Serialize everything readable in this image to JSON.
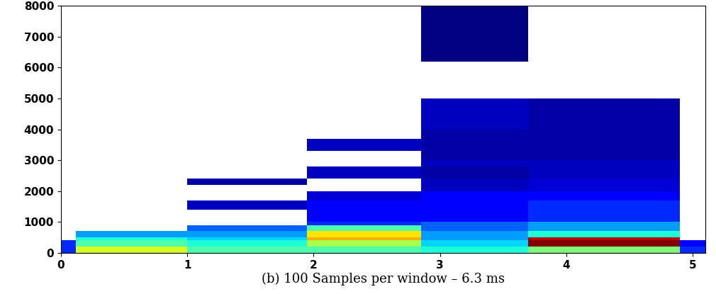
{
  "chart_data": {
    "type": "heatmap",
    "xlabel": "(b) 100 Samples per window – 6.3 ms",
    "x": [
      0,
      0.12,
      1.0,
      1.95,
      2.85,
      3.7,
      4.9,
      5.1
    ],
    "y": [
      0,
      200,
      400,
      500,
      700,
      900,
      1000,
      1400,
      1700,
      2000,
      2200,
      2400,
      2800,
      3000,
      3300,
      3700,
      4000,
      5000,
      6200,
      7500,
      8000
    ],
    "cells": [
      [
        0.2,
        0.6,
        0.45,
        0.45,
        0.4,
        0.5,
        0.2
      ],
      [
        0.2,
        0.45,
        0.4,
        0.55,
        0.35,
        0.95,
        0.15
      ],
      [
        null,
        0.4,
        0.35,
        0.7,
        0.3,
        0.9,
        null
      ],
      [
        null,
        0.3,
        0.3,
        0.65,
        0.3,
        0.4,
        null
      ],
      [
        null,
        null,
        0.25,
        0.45,
        0.25,
        0.3,
        null
      ],
      [
        null,
        null,
        null,
        0.2,
        0.25,
        0.3,
        null
      ],
      [
        null,
        null,
        null,
        0.15,
        0.15,
        0.2,
        null
      ],
      [
        null,
        null,
        0.1,
        0.15,
        0.15,
        0.2,
        null
      ],
      [
        null,
        null,
        null,
        0.12,
        0.15,
        0.15,
        null
      ],
      [
        null,
        null,
        null,
        null,
        0.1,
        0.12,
        null
      ],
      [
        null,
        null,
        0.08,
        null,
        0.1,
        0.12,
        null
      ],
      [
        null,
        null,
        null,
        0.1,
        0.08,
        0.1,
        null
      ],
      [
        null,
        null,
        null,
        null,
        0.1,
        0.1,
        null
      ],
      [
        null,
        null,
        null,
        null,
        0.08,
        0.08,
        null
      ],
      [
        null,
        null,
        null,
        0.1,
        0.08,
        0.08,
        null
      ],
      [
        null,
        null,
        null,
        null,
        0.08,
        0.08,
        null
      ],
      [
        null,
        null,
        null,
        null,
        0.1,
        0.08,
        null
      ],
      [
        null,
        null,
        null,
        null,
        null,
        null,
        null
      ],
      [
        null,
        null,
        null,
        null,
        0.05,
        null,
        null
      ],
      [
        null,
        null,
        null,
        null,
        0.05,
        null,
        null
      ]
    ],
    "xlim": [
      0,
      5.1
    ],
    "xticks": [
      0,
      1,
      2,
      3,
      4,
      5
    ],
    "ylim": [
      0,
      8000
    ],
    "yticks": [
      0,
      1000,
      2000,
      3000,
      4000,
      5000,
      6000,
      7000,
      8000
    ]
  }
}
